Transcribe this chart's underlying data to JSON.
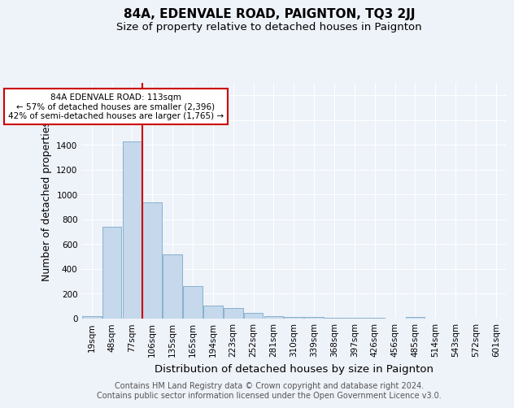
{
  "title": "84A, EDENVALE ROAD, PAIGNTON, TQ3 2JJ",
  "subtitle": "Size of property relative to detached houses in Paignton",
  "xlabel": "Distribution of detached houses by size in Paignton",
  "ylabel": "Number of detached properties",
  "categories": [
    "19sqm",
    "48sqm",
    "77sqm",
    "106sqm",
    "135sqm",
    "165sqm",
    "194sqm",
    "223sqm",
    "252sqm",
    "281sqm",
    "310sqm",
    "339sqm",
    "368sqm",
    "397sqm",
    "426sqm",
    "456sqm",
    "485sqm",
    "514sqm",
    "543sqm",
    "572sqm",
    "601sqm"
  ],
  "values": [
    20,
    740,
    1430,
    940,
    520,
    265,
    107,
    88,
    45,
    20,
    15,
    12,
    8,
    6,
    4,
    3,
    13,
    0,
    0,
    0,
    0
  ],
  "bar_color": "#c5d8ec",
  "bar_edge_color": "#7aaac8",
  "red_line_x": 2.5,
  "annotation_lines": [
    "84A EDENVALE ROAD: 113sqm",
    "← 57% of detached houses are smaller (2,396)",
    "42% of semi-detached houses are larger (1,765) →"
  ],
  "annotation_box_color": "#ffffff",
  "annotation_box_edge_color": "#cc0000",
  "red_line_color": "#cc0000",
  "ylim": [
    0,
    1900
  ],
  "yticks": [
    0,
    200,
    400,
    600,
    800,
    1000,
    1200,
    1400,
    1600,
    1800
  ],
  "footer_line1": "Contains HM Land Registry data © Crown copyright and database right 2024.",
  "footer_line2": "Contains public sector information licensed under the Open Government Licence v3.0.",
  "background_color": "#eef2f9",
  "grid_color": "#ffffff",
  "title_fontsize": 11,
  "subtitle_fontsize": 9.5,
  "label_fontsize": 9,
  "tick_fontsize": 7.5,
  "footer_fontsize": 7
}
